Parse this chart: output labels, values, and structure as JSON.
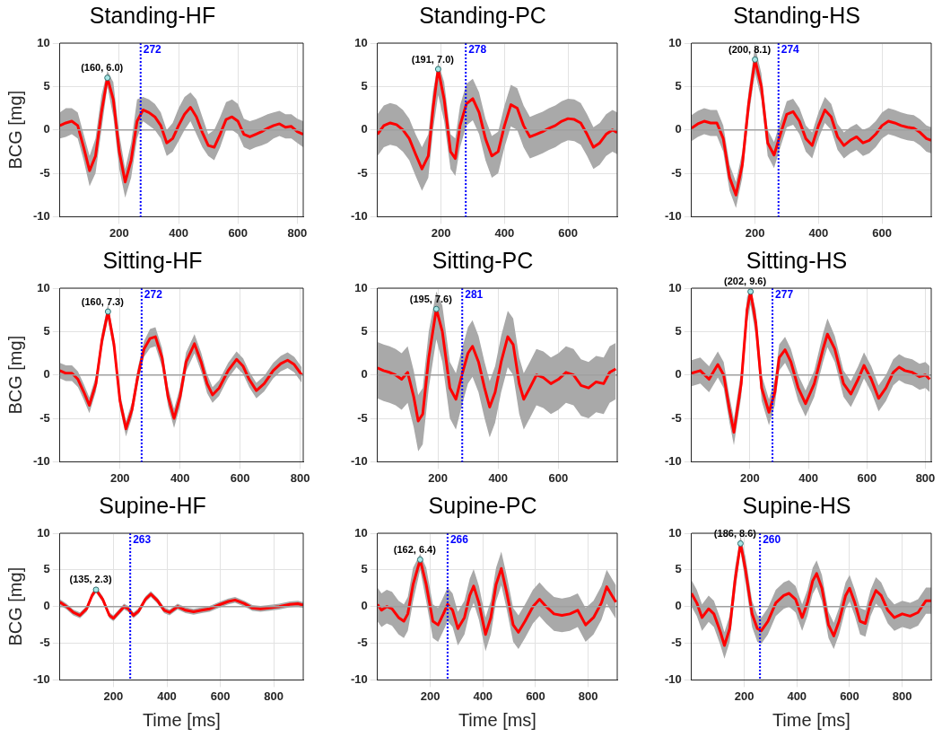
{
  "chart_data": [
    {
      "type": "line",
      "title": "Standing-HF",
      "ylabel": "BCG [mg]",
      "marker": "none",
      "grid": true,
      "xlim": [
        0,
        820
      ],
      "xticks": [
        200,
        400,
        600,
        800
      ],
      "ylim": [
        -10,
        10
      ],
      "yticks": [
        -10,
        -5,
        0,
        5,
        10
      ],
      "x": [
        0,
        20,
        40,
        60,
        80,
        100,
        120,
        140,
        160,
        180,
        200,
        220,
        240,
        260,
        280,
        300,
        320,
        340,
        360,
        380,
        400,
        420,
        440,
        460,
        480,
        500,
        520,
        540,
        560,
        580,
        600,
        620,
        640,
        660,
        680,
        700,
        720,
        740,
        760,
        780,
        800,
        820
      ],
      "series": [
        {
          "color": "#ff0000",
          "values": [
            0.5,
            0.8,
            1.0,
            0.5,
            -2.0,
            -4.7,
            -3.0,
            2.0,
            6.0,
            3.5,
            -2.5,
            -6.0,
            -3.5,
            1.0,
            2.3,
            2.0,
            1.5,
            0.5,
            -1.5,
            -1.0,
            0.5,
            1.8,
            2.6,
            1.5,
            -0.3,
            -1.8,
            -2.0,
            -0.5,
            1.2,
            1.5,
            1.0,
            -0.5,
            -0.8,
            -0.5,
            -0.2,
            0.2,
            0.5,
            0.7,
            0.3,
            0.4,
            -0.2,
            -0.5
          ],
          "upper": [
            2.0,
            2.5,
            2.5,
            2.0,
            -0.5,
            -3.0,
            -1.0,
            4.0,
            6.8,
            5.5,
            -0.5,
            -4.5,
            -1.5,
            3.5,
            3.8,
            3.5,
            3.0,
            2.0,
            0,
            0.8,
            2.5,
            3.8,
            4.3,
            3.5,
            1.5,
            -0.5,
            0.0,
            1.5,
            3.2,
            3.5,
            3.0,
            1.3,
            1.0,
            1.2,
            1.5,
            1.8,
            2.0,
            2.2,
            1.8,
            1.8,
            1.3,
            1.0
          ],
          "lower": [
            -1.0,
            -0.8,
            -0.5,
            -1.0,
            -3.5,
            -6.5,
            -5.0,
            0,
            5.0,
            1.5,
            -4.5,
            -7.8,
            -5.5,
            -1.0,
            1.0,
            0.5,
            0,
            -1.0,
            -3.0,
            -2.5,
            -1.3,
            0,
            1.0,
            -0.5,
            -2.0,
            -3.0,
            -3.5,
            -2.0,
            0,
            0,
            -0.5,
            -2.0,
            -2.3,
            -2.0,
            -1.8,
            -1.5,
            -1.0,
            -0.7,
            -1.0,
            -1.0,
            -1.5,
            -2.0
          ]
        }
      ],
      "ref_lines": [
        {
          "axis": "y",
          "value": 0,
          "color": "#a0a0a0",
          "line_style": "solid"
        },
        {
          "axis": "x",
          "value": 272,
          "label": "272",
          "color": "#0000ff",
          "line_style": "dotted"
        }
      ],
      "annotations": [
        {
          "text": "(160, 6.0)",
          "x": 160,
          "y": 6.0
        }
      ]
    },
    {
      "type": "line",
      "title": "Standing-PC",
      "marker": "none",
      "grid": true,
      "xlim": [
        0,
        755
      ],
      "xticks": [
        200,
        400,
        600
      ],
      "ylim": [
        -10,
        10
      ],
      "yticks": [
        -10,
        -5,
        0,
        5,
        10
      ],
      "x": [
        0,
        20,
        40,
        60,
        80,
        100,
        120,
        140,
        160,
        175,
        191,
        210,
        230,
        245,
        260,
        280,
        300,
        320,
        340,
        360,
        380,
        400,
        420,
        440,
        460,
        480,
        500,
        520,
        540,
        560,
        580,
        600,
        620,
        640,
        660,
        680,
        700,
        720,
        740,
        755
      ],
      "series": [
        {
          "color": "#ff0000",
          "values": [
            -0.5,
            0.5,
            0.8,
            0.6,
            0,
            -1.0,
            -2.8,
            -4.5,
            -3.0,
            2.5,
            7.0,
            3.5,
            -2.5,
            -3.3,
            0.5,
            3.0,
            3.6,
            2.0,
            -1.0,
            -3.0,
            -2.5,
            0.5,
            2.9,
            2.5,
            0.5,
            -0.8,
            -0.5,
            -0.2,
            0.2,
            0.5,
            1.0,
            1.3,
            1.2,
            0.8,
            -0.5,
            -2.0,
            -1.5,
            -0.5,
            0,
            -0.3
          ],
          "upper": [
            1.8,
            2.8,
            3.1,
            2.9,
            2.3,
            1.3,
            -0.5,
            -2.0,
            -0.5,
            4.5,
            7.8,
            5.5,
            -0.5,
            -1.0,
            2.8,
            5.3,
            5.9,
            4.3,
            1.3,
            -0.7,
            -0.2,
            2.8,
            5.2,
            4.8,
            2.8,
            1.5,
            1.8,
            2.1,
            2.5,
            2.8,
            3.3,
            3.6,
            3.5,
            3.1,
            1.8,
            0.3,
            0.8,
            1.8,
            2.3,
            2.0
          ],
          "lower": [
            -3.0,
            -2.0,
            -1.7,
            -1.9,
            -2.5,
            -3.5,
            -5.3,
            -7.0,
            -5.5,
            0.0,
            4.0,
            1.0,
            -4.5,
            -5.3,
            -2.0,
            0.5,
            1.1,
            -0.5,
            -3.5,
            -5.5,
            -5.0,
            -2.0,
            0.4,
            0.0,
            -2.0,
            -3.3,
            -3.0,
            -2.7,
            -2.3,
            -2.0,
            -1.5,
            -1.2,
            -1.3,
            -1.7,
            -3.0,
            -4.5,
            -4.0,
            -3.0,
            -2.5,
            -2.8
          ]
        }
      ],
      "ref_lines": [
        {
          "axis": "y",
          "value": 0,
          "color": "#a0a0a0",
          "line_style": "solid"
        },
        {
          "axis": "x",
          "value": 278,
          "label": "278",
          "color": "#0000ff",
          "line_style": "dotted"
        }
      ],
      "annotations": [
        {
          "text": "(191, 7.0)",
          "x": 191,
          "y": 7.0
        }
      ]
    },
    {
      "type": "line",
      "title": "Standing-HS",
      "marker": "none",
      "grid": true,
      "xlim": [
        0,
        755
      ],
      "xticks": [
        200,
        400,
        600
      ],
      "ylim": [
        -10,
        10
      ],
      "yticks": [
        -10,
        -5,
        0,
        5,
        10
      ],
      "x": [
        0,
        20,
        40,
        60,
        80,
        100,
        120,
        140,
        160,
        180,
        200,
        220,
        240,
        260,
        280,
        300,
        320,
        340,
        360,
        380,
        400,
        420,
        440,
        460,
        480,
        500,
        520,
        540,
        560,
        580,
        600,
        620,
        640,
        660,
        680,
        700,
        720,
        740,
        755
      ],
      "series": [
        {
          "color": "#ff0000",
          "values": [
            0.2,
            0.7,
            1.0,
            0.8,
            0.8,
            -1.0,
            -5.5,
            -7.5,
            -4.0,
            3.0,
            8.1,
            5.0,
            -1.5,
            -2.9,
            -0.5,
            1.8,
            2.1,
            1.0,
            -1.0,
            -1.8,
            0.5,
            2.3,
            1.5,
            -0.8,
            -1.8,
            -1.2,
            -0.8,
            -1.5,
            -1.2,
            -0.5,
            0.5,
            1.0,
            0.8,
            0.5,
            0.3,
            0.2,
            -0.3,
            -1.0,
            -1.2
          ],
          "upper": [
            1.7,
            2.2,
            2.5,
            2.3,
            2.3,
            0.5,
            -4.0,
            -6.0,
            -2.5,
            4.5,
            9.6,
            6.5,
            0,
            -1.4,
            1.0,
            3.3,
            3.6,
            2.5,
            0.5,
            -0.3,
            2.0,
            3.8,
            3.0,
            0.7,
            -0.3,
            0.3,
            0.7,
            0,
            0.3,
            1.0,
            2.0,
            2.5,
            2.3,
            2.0,
            1.8,
            1.7,
            1.2,
            0.5,
            0.3
          ],
          "lower": [
            -1.3,
            -0.8,
            -0.5,
            -0.7,
            -0.7,
            -2.5,
            -7.0,
            -9.0,
            -5.5,
            1.5,
            6.6,
            3.5,
            -3.0,
            -4.4,
            -2.0,
            0.3,
            0.6,
            -0.5,
            -2.5,
            -3.3,
            -1.0,
            0.8,
            0,
            -2.3,
            -3.3,
            -2.7,
            -2.3,
            -3.0,
            -2.7,
            -2.0,
            -1.0,
            -0.5,
            -0.7,
            -1.0,
            -1.2,
            -1.3,
            -1.8,
            -2.5,
            -2.7
          ]
        }
      ],
      "ref_lines": [
        {
          "axis": "y",
          "value": 0,
          "color": "#a0a0a0",
          "line_style": "solid"
        },
        {
          "axis": "x",
          "value": 274,
          "label": "274",
          "color": "#0000ff",
          "line_style": "dotted"
        }
      ],
      "annotations": [
        {
          "text": "(200, 8.1)",
          "x": 200,
          "y": 8.1
        }
      ]
    },
    {
      "type": "line",
      "title": "Sitting-HF",
      "ylabel": "BCG [mg]",
      "marker": "none",
      "grid": true,
      "xlim": [
        0,
        810
      ],
      "xticks": [
        200,
        400,
        600,
        800
      ],
      "ylim": [
        -10,
        10
      ],
      "yticks": [
        -10,
        -5,
        0,
        5,
        10
      ],
      "x": [
        0,
        20,
        40,
        60,
        80,
        98,
        120,
        140,
        160,
        180,
        200,
        220,
        240,
        260,
        280,
        300,
        318,
        340,
        360,
        380,
        400,
        420,
        448,
        470,
        490,
        508,
        530,
        560,
        588,
        610,
        630,
        654,
        680,
        710,
        735,
        758,
        780,
        805
      ],
      "series": [
        {
          "color": "#ff0000",
          "values": [
            0.5,
            0.2,
            0.2,
            -0.5,
            -2.0,
            -3.5,
            -1.0,
            4.0,
            7.3,
            3.5,
            -3.0,
            -6.2,
            -4.0,
            0,
            3.0,
            4.2,
            4.4,
            2.0,
            -2.5,
            -5.0,
            -2.5,
            1.5,
            3.6,
            1.5,
            -1.0,
            -2.3,
            -1.5,
            0.5,
            1.8,
            1.0,
            -0.5,
            -1.8,
            -1.0,
            0.5,
            1.3,
            1.7,
            1.2,
            0
          ],
          "upper": [
            1.4,
            1.1,
            1.1,
            0.4,
            -1.1,
            -2.6,
            -0.1,
            4.9,
            8.2,
            4.4,
            -2.1,
            -5.3,
            -3.1,
            0.9,
            3.9,
            5.3,
            5.5,
            3.1,
            -1.4,
            -3.9,
            -1.4,
            2.6,
            4.7,
            2.6,
            0.1,
            -1.4,
            -0.6,
            1.4,
            2.7,
            1.9,
            0.4,
            -0.9,
            -0.1,
            1.4,
            2.2,
            2.6,
            2.1,
            0.9
          ],
          "lower": [
            -0.4,
            -0.7,
            -0.7,
            -1.4,
            -2.9,
            -4.4,
            -1.9,
            3.1,
            6.4,
            2.6,
            -3.9,
            -7.1,
            -4.9,
            -0.9,
            2.1,
            3.1,
            3.3,
            0.9,
            -3.6,
            -6.1,
            -3.6,
            0.4,
            2.5,
            0.4,
            -2.1,
            -3.2,
            -2.4,
            -0.4,
            0.9,
            0.1,
            -1.4,
            -2.7,
            -1.9,
            -0.4,
            0.4,
            0.8,
            0.3,
            -0.9
          ]
        }
      ],
      "ref_lines": [
        {
          "axis": "y",
          "value": 0,
          "color": "#a0a0a0",
          "line_style": "solid"
        },
        {
          "axis": "x",
          "value": 272,
          "label": "272",
          "color": "#0000ff",
          "line_style": "dotted"
        }
      ],
      "annotations": [
        {
          "text": "(160, 7.3)",
          "x": 160,
          "y": 7.3
        }
      ]
    },
    {
      "type": "line",
      "title": "Sitting-PC",
      "marker": "none",
      "grid": true,
      "xlim": [
        0,
        795
      ],
      "xticks": [
        200,
        400,
        600
      ],
      "ylim": [
        -10,
        10
      ],
      "yticks": [
        -10,
        -5,
        0,
        5,
        10
      ],
      "x": [
        0,
        20,
        40,
        60,
        80,
        100,
        120,
        135,
        150,
        170,
        195,
        215,
        240,
        260,
        280,
        300,
        315,
        335,
        355,
        372,
        390,
        410,
        432,
        450,
        470,
        485,
        505,
        527,
        550,
        575,
        600,
        625,
        650,
        675,
        700,
        725,
        750,
        770,
        790
      ],
      "series": [
        {
          "color": "#ff0000",
          "values": [
            0.8,
            0.5,
            0.3,
            0,
            -0.5,
            0.3,
            -2.5,
            -5.3,
            -4.5,
            2.0,
            7.6,
            5.0,
            -1.5,
            -2.8,
            0,
            2.5,
            3.3,
            1.5,
            -1.5,
            -3.7,
            -2.0,
            1.5,
            4.4,
            3.5,
            -1.0,
            -2.8,
            -1.5,
            0,
            -0.3,
            -1.0,
            -0.5,
            0.3,
            0,
            -1.2,
            -1.5,
            -0.8,
            -1.0,
            0.3,
            0.7
          ],
          "upper": [
            3.8,
            3.5,
            3.3,
            3.0,
            2.5,
            3.3,
            0.5,
            -2.3,
            -1.5,
            5.0,
            9.6,
            8.0,
            1.5,
            0.2,
            3.0,
            5.5,
            6.3,
            4.5,
            1.5,
            -0.7,
            1.0,
            4.5,
            7.4,
            6.5,
            2.0,
            0.2,
            1.5,
            3.0,
            2.7,
            2.0,
            2.5,
            3.3,
            3.0,
            1.8,
            1.5,
            2.2,
            2.0,
            3.3,
            3.7
          ],
          "lower": [
            -2.7,
            -3.0,
            -3.2,
            -3.5,
            -4.0,
            -3.2,
            -6.0,
            -8.8,
            -8.0,
            -1.5,
            4.1,
            1.5,
            -5.0,
            -6.3,
            -3.5,
            -1.0,
            -0.2,
            -2.0,
            -5.0,
            -7.2,
            -5.5,
            -2.0,
            0.9,
            0.0,
            -4.5,
            -6.3,
            -5.0,
            -3.5,
            -3.8,
            -4.5,
            -4.0,
            -3.2,
            -3.5,
            -4.7,
            -5.0,
            -4.3,
            -4.5,
            -3.2,
            -2.8
          ]
        }
      ],
      "ref_lines": [
        {
          "axis": "y",
          "value": 0,
          "color": "#a0a0a0",
          "line_style": "solid"
        },
        {
          "axis": "x",
          "value": 281,
          "label": "281",
          "color": "#0000ff",
          "line_style": "dotted"
        }
      ],
      "annotations": [
        {
          "text": "(195, 7.6)",
          "x": 195,
          "y": 7.6
        }
      ]
    },
    {
      "type": "line",
      "title": "Sitting-HS",
      "marker": "none",
      "grid": true,
      "xlim": [
        0,
        820
      ],
      "xticks": [
        200,
        400,
        600,
        800
      ],
      "ylim": [
        -10,
        10
      ],
      "yticks": [
        -10,
        -5,
        0,
        5,
        10
      ],
      "x": [
        0,
        30,
        60,
        90,
        110,
        130,
        145,
        170,
        190,
        202,
        220,
        240,
        265,
        285,
        300,
        320,
        340,
        365,
        390,
        420,
        450,
        465,
        490,
        520,
        545,
        570,
        590,
        615,
        640,
        665,
        690,
        710,
        730,
        755,
        780,
        800,
        815
      ],
      "series": [
        {
          "color": "#ff0000",
          "values": [
            0.2,
            0.5,
            -0.5,
            1.2,
            0,
            -4.0,
            -6.6,
            -1.0,
            7.5,
            9.6,
            6.0,
            -1.5,
            -4.3,
            -2.0,
            2.0,
            2.9,
            1.5,
            -1.5,
            -3.3,
            -1.0,
            3.0,
            4.7,
            3.0,
            -1.0,
            -2.2,
            -0.5,
            1.1,
            -0.5,
            -2.7,
            -1.5,
            0.3,
            0.9,
            0.5,
            0.3,
            -0.2,
            0.0,
            -0.5
          ],
          "upper": [
            1.7,
            2.0,
            1.0,
            2.7,
            1.5,
            -2.5,
            -5.1,
            0.5,
            9.0,
            9.9,
            7.5,
            0,
            -2.8,
            -0.5,
            3.5,
            4.4,
            3.0,
            0,
            -1.8,
            0.5,
            4.8,
            6.5,
            4.5,
            0.5,
            -0.7,
            1.0,
            2.6,
            1.0,
            -1.2,
            0,
            1.8,
            2.4,
            2.0,
            1.8,
            1.3,
            1.5,
            1.0
          ],
          "lower": [
            -1.3,
            -1.0,
            -2.0,
            -0.3,
            -1.5,
            -5.5,
            -8.1,
            -2.5,
            6.0,
            8.1,
            4.5,
            -3.0,
            -5.8,
            -3.5,
            0.5,
            1.4,
            0,
            -3.0,
            -4.8,
            -2.5,
            1.5,
            3.2,
            1.5,
            -2.5,
            -3.7,
            -2.0,
            -0.4,
            -2.0,
            -4.2,
            -3.0,
            -1.2,
            -0.6,
            -1.0,
            -1.2,
            -1.7,
            -1.5,
            -2.0
          ]
        }
      ],
      "ref_lines": [
        {
          "axis": "y",
          "value": 0,
          "color": "#a0a0a0",
          "line_style": "solid"
        },
        {
          "axis": "x",
          "value": 277,
          "label": "277",
          "color": "#0000ff",
          "line_style": "dotted"
        }
      ],
      "annotations": [
        {
          "text": "(202, 9.6)",
          "x": 202,
          "y": 9.6
        }
      ]
    },
    {
      "type": "line",
      "title": "Supine-HF",
      "ylabel": "BCG [mg]",
      "xlabel": "Time [ms]",
      "marker": "none",
      "grid": true,
      "xlim": [
        0,
        910
      ],
      "xticks": [
        200,
        400,
        600,
        800
      ],
      "ylim": [
        -10,
        10
      ],
      "yticks": [
        -10,
        -5,
        0,
        5,
        10
      ],
      "x": [
        0,
        25,
        50,
        75,
        100,
        120,
        135,
        160,
        185,
        200,
        220,
        240,
        255,
        275,
        295,
        320,
        340,
        365,
        390,
        410,
        440,
        470,
        500,
        530,
        560,
        600,
        630,
        655,
        690,
        720,
        750,
        780,
        820,
        860,
        890,
        910
      ],
      "series": [
        {
          "color": "#ff0000",
          "values": [
            0.6,
            0,
            -0.8,
            -1.2,
            -0.3,
            1.5,
            2.3,
            1.0,
            -1.2,
            -1.6,
            -0.8,
            0,
            -0.3,
            -1.2,
            -0.6,
            1.0,
            1.7,
            0.8,
            -0.5,
            -0.8,
            0,
            -0.5,
            -0.7,
            -0.5,
            -0.3,
            0.3,
            0.7,
            0.9,
            0.4,
            -0.2,
            -0.3,
            -0.2,
            0,
            0.3,
            0.4,
            0.2
          ],
          "upper": [
            1.0,
            0.4,
            -0.4,
            -0.8,
            0.1,
            1.9,
            2.7,
            1.4,
            -0.8,
            -1.2,
            -0.4,
            0.4,
            0.1,
            -0.8,
            -0.2,
            1.4,
            2.1,
            1.2,
            -0.1,
            -0.4,
            0.4,
            -0.1,
            -0.3,
            -0.1,
            0.1,
            0.7,
            1.1,
            1.3,
            0.8,
            0.2,
            0.1,
            0.2,
            0.4,
            0.7,
            0.8,
            0.6
          ],
          "lower": [
            0.2,
            -0.4,
            -1.2,
            -1.6,
            -0.7,
            1.1,
            1.9,
            0.6,
            -1.6,
            -2.0,
            -1.2,
            -0.4,
            -0.7,
            -1.6,
            -1.0,
            0.6,
            1.3,
            0.4,
            -0.9,
            -1.2,
            -0.4,
            -0.9,
            -1.1,
            -0.9,
            -0.7,
            -0.1,
            0.3,
            0.5,
            0,
            -0.6,
            -0.7,
            -0.6,
            -0.4,
            -0.1,
            0,
            -0.2
          ]
        }
      ],
      "ref_lines": [
        {
          "axis": "y",
          "value": 0,
          "color": "#a0a0a0",
          "line_style": "solid"
        },
        {
          "axis": "x",
          "value": 263,
          "label": "263",
          "color": "#0000ff",
          "line_style": "dotted"
        }
      ],
      "annotations": [
        {
          "text": "(135, 2.3)",
          "x": 135,
          "y": 2.3
        }
      ]
    },
    {
      "type": "line",
      "title": "Supine-PC",
      "xlabel": "Time [ms]",
      "marker": "none",
      "grid": true,
      "xlim": [
        0,
        910
      ],
      "xticks": [
        200,
        400,
        600,
        800
      ],
      "ylim": [
        -10,
        10
      ],
      "yticks": [
        -10,
        -5,
        0,
        5,
        10
      ],
      "x": [
        0,
        15,
        35,
        55,
        80,
        100,
        115,
        135,
        162,
        185,
        210,
        230,
        250,
        266,
        285,
        305,
        330,
        350,
        365,
        385,
        410,
        430,
        450,
        470,
        490,
        515,
        535,
        560,
        590,
        615,
        640,
        670,
        700,
        730,
        760,
        790,
        820,
        850,
        870,
        890,
        905
      ],
      "series": [
        {
          "color": "#ff0000",
          "values": [
            0.3,
            -0.5,
            0,
            -0.3,
            -1.5,
            -2.0,
            -1.0,
            3.0,
            6.4,
            3.0,
            -2.0,
            -2.5,
            -1.0,
            0.3,
            -0.5,
            -3.0,
            -1.5,
            1.5,
            2.8,
            0.5,
            -3.8,
            -1.5,
            3.0,
            5.2,
            2.0,
            -2.5,
            -3.5,
            -2.0,
            0.0,
            1.0,
            0.0,
            -1.0,
            -1.2,
            -1.0,
            -0.5,
            -2.5,
            -1.5,
            0.5,
            2.7,
            1.5,
            0.6
          ],
          "upper": [
            2.6,
            1.8,
            2.3,
            2.0,
            0.8,
            0.3,
            1.3,
            5.3,
            7.2,
            5.3,
            0.3,
            -0.2,
            1.3,
            2.6,
            1.8,
            -0.7,
            0.8,
            3.8,
            5.1,
            2.8,
            -1.5,
            0.8,
            5.3,
            7.5,
            4.3,
            -0.2,
            -1.2,
            0.3,
            2.3,
            3.3,
            2.3,
            1.3,
            1.1,
            1.3,
            1.8,
            -0.2,
            0.8,
            2.8,
            5.0,
            3.8,
            2.9
          ],
          "lower": [
            -2.0,
            -2.8,
            -2.3,
            -2.6,
            -3.8,
            -4.3,
            -3.3,
            0.7,
            5.0,
            0.7,
            -4.3,
            -4.8,
            -3.3,
            -2.0,
            -2.8,
            -5.3,
            -3.8,
            -0.8,
            0.5,
            -1.8,
            -6.1,
            -3.8,
            0.7,
            2.9,
            -0.3,
            -4.8,
            -5.8,
            -4.3,
            -2.3,
            -1.3,
            -2.3,
            -3.3,
            -3.5,
            -3.3,
            -2.8,
            -4.8,
            -3.8,
            -1.8,
            0.4,
            -0.8,
            -1.7
          ]
        }
      ],
      "ref_lines": [
        {
          "axis": "y",
          "value": 0,
          "color": "#a0a0a0",
          "line_style": "solid"
        },
        {
          "axis": "x",
          "value": 266,
          "label": "266",
          "color": "#0000ff",
          "line_style": "dotted"
        }
      ],
      "annotations": [
        {
          "text": "(162, 6.4)",
          "x": 162,
          "y": 6.4
        }
      ]
    },
    {
      "type": "line",
      "title": "Supine-HS",
      "xlabel": "Time [ms]",
      "marker": "none",
      "grid": true,
      "xlim": [
        0,
        910
      ],
      "xticks": [
        200,
        400,
        600,
        800
      ],
      "ylim": [
        -10,
        10
      ],
      "yticks": [
        -10,
        -5,
        0,
        5,
        10
      ],
      "x": [
        0,
        20,
        40,
        65,
        85,
        110,
        125,
        145,
        165,
        186,
        205,
        230,
        250,
        265,
        290,
        320,
        350,
        370,
        395,
        420,
        440,
        460,
        475,
        495,
        520,
        540,
        560,
        585,
        600,
        620,
        640,
        660,
        680,
        700,
        720,
        745,
        770,
        800,
        830,
        860,
        890,
        910
      ],
      "series": [
        {
          "color": "#ff0000",
          "values": [
            1.8,
            0.5,
            -1.5,
            -0.3,
            -1.0,
            -3.5,
            -5.3,
            -3.0,
            3.5,
            8.6,
            5.0,
            -1.0,
            -3.0,
            -3.3,
            -2.0,
            0.5,
            1.5,
            1.8,
            1.0,
            -1.5,
            0.5,
            3.5,
            4.5,
            2.5,
            -2.5,
            -4.0,
            -2.0,
            1.5,
            2.5,
            0.5,
            -2.0,
            -2.3,
            0.5,
            2.2,
            1.5,
            -0.5,
            -1.5,
            -1.0,
            -1.3,
            -0.8,
            0.8,
            0.8
          ],
          "upper": [
            3.6,
            2.3,
            0.3,
            1.5,
            0.8,
            -1.7,
            -3.5,
            -1.2,
            5.3,
            9.6,
            6.8,
            0.8,
            -1.2,
            -1.5,
            -0.2,
            2.3,
            3.3,
            3.6,
            2.8,
            0.3,
            2.3,
            5.3,
            6.3,
            4.3,
            -0.7,
            -2.2,
            -0.2,
            3.3,
            4.3,
            2.3,
            -0.2,
            -0.5,
            2.3,
            4.0,
            3.3,
            1.3,
            0.3,
            0.8,
            0.5,
            1.0,
            2.6,
            2.6
          ],
          "lower": [
            0,
            -1.3,
            -3.3,
            -2.1,
            -2.8,
            -5.3,
            -7.1,
            -4.8,
            1.7,
            7.6,
            3.2,
            -2.8,
            -4.8,
            -5.1,
            -3.8,
            -1.3,
            -0.3,
            0,
            -0.8,
            -3.3,
            -1.3,
            1.7,
            2.7,
            0.7,
            -4.3,
            -5.8,
            -3.8,
            -0.3,
            0.7,
            -1.3,
            -3.8,
            -4.1,
            -1.3,
            0.4,
            -0.3,
            -2.3,
            -3.3,
            -2.8,
            -3.1,
            -2.6,
            -1.0,
            -1.0
          ]
        }
      ],
      "ref_lines": [
        {
          "axis": "y",
          "value": 0,
          "color": "#a0a0a0",
          "line_style": "solid"
        },
        {
          "axis": "x",
          "value": 260,
          "label": "260",
          "color": "#0000ff",
          "line_style": "dotted"
        }
      ],
      "annotations": [
        {
          "text": "(186, 8.6)",
          "x": 186,
          "y": 8.6
        }
      ]
    }
  ]
}
